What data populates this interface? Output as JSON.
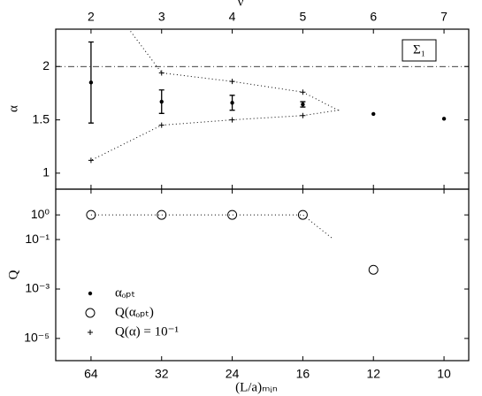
{
  "chart_data": [
    {
      "type": "scatter",
      "xlabel": "ν",
      "ylabel": "α",
      "xaxis_position": "top",
      "xlim": [
        1.5,
        7.35
      ],
      "ylim": [
        0.85,
        2.35
      ],
      "xticks": [
        2,
        3,
        4,
        5,
        6,
        7
      ],
      "yticks": [
        1.0,
        1.5,
        2.0
      ],
      "hline": 2.0,
      "annotation": "Σ₁",
      "series": [
        {
          "name": "αₒₚₜ",
          "marker": "dot",
          "color": "#000000",
          "x": [
            2,
            3,
            4,
            5,
            6,
            7
          ],
          "values": [
            1.85,
            1.67,
            1.66,
            1.645,
            1.555,
            1.51
          ],
          "errors": [
            0.38,
            0.11,
            0.07,
            0.025,
            null,
            null
          ]
        },
        {
          "name": "Q(α) = 10⁻¹",
          "marker": "plus",
          "color": "#000000",
          "x": [
            3,
            4,
            5,
            2,
            3,
            4,
            5
          ],
          "values": [
            1.94,
            1.86,
            1.76,
            1.12,
            1.45,
            1.5,
            1.54
          ]
        },
        {
          "marker": "dotted-line",
          "color": "#000000",
          "x": [
            2.56,
            3,
            4,
            5,
            5.5,
            5,
            4,
            3,
            2
          ],
          "values": [
            2.33,
            1.94,
            1.86,
            1.76,
            1.59,
            1.54,
            1.5,
            1.45,
            1.12
          ]
        }
      ]
    },
    {
      "type": "scatter",
      "xlabel": "(L/a)ₘᵢₙ",
      "ylabel": "Q",
      "log_y": true,
      "legend": "lower left",
      "xlim": [
        1.5,
        7.35
      ],
      "ylim": [
        1.26e-06,
        11
      ],
      "xticks": [
        {
          "value": 2,
          "label": "64"
        },
        {
          "value": 3,
          "label": "32"
        },
        {
          "value": 4,
          "label": "24"
        },
        {
          "value": 5,
          "label": "16"
        },
        {
          "value": 6,
          "label": "12"
        },
        {
          "value": 7,
          "label": "10"
        }
      ],
      "yticks": [
        {
          "value": 1,
          "label": "10⁰"
        },
        {
          "value": 0.1,
          "label": "10⁻¹"
        },
        {
          "value": 0.001,
          "label": "10⁻³"
        },
        {
          "value": 1e-05,
          "label": "10⁻⁵"
        }
      ],
      "series": [
        {
          "name": "Q(αₒₚₜ)",
          "marker": "circle",
          "color": "#000000",
          "x": [
            2,
            3,
            4,
            5,
            6
          ],
          "values": [
            1,
            1,
            1,
            1,
            0.006
          ]
        },
        {
          "marker": "dotted-line",
          "color": "#000000",
          "x": [
            2,
            3,
            4,
            5,
            5.42
          ],
          "values": [
            1,
            1,
            1,
            1,
            0.11
          ]
        }
      ]
    }
  ]
}
